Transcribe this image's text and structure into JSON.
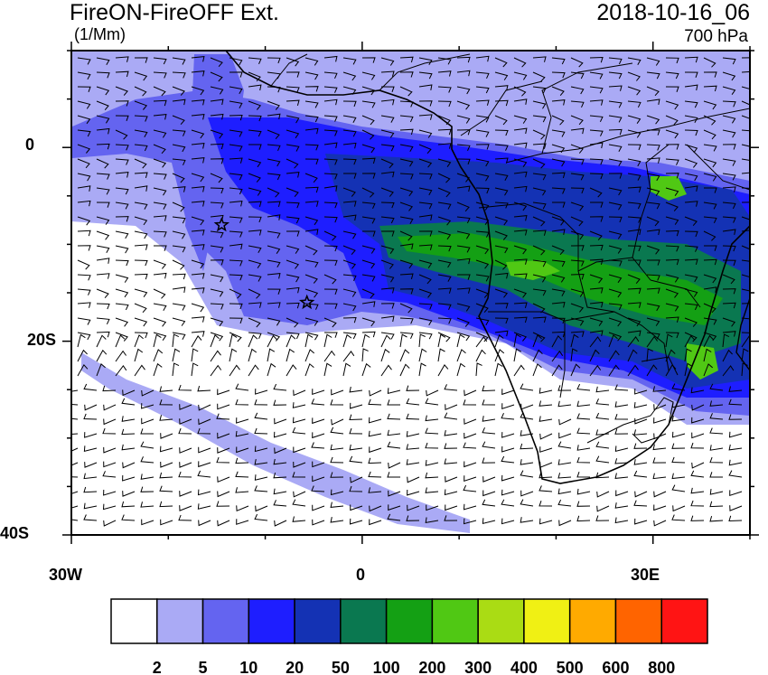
{
  "header": {
    "title": "FireON-FireOFF Ext.",
    "units": "(1/Mm)",
    "datetime": "2018-10-16_06",
    "level": "700 hPa"
  },
  "axes": {
    "y_ticks": [
      "0",
      "20S",
      "40S"
    ],
    "x_ticks": [
      "30W",
      "0",
      "30E"
    ]
  },
  "colorbar": {
    "colors": [
      "#ffffff",
      "#aaaaf5",
      "#6464f0",
      "#1e1eff",
      "#1432b4",
      "#0a7850",
      "#14a014",
      "#50c814",
      "#aadc14",
      "#f0f014",
      "#ffaa00",
      "#ff6400",
      "#ff1414"
    ],
    "labels": [
      "2",
      "5",
      "10",
      "20",
      "50",
      "100",
      "200",
      "300",
      "400",
      "500",
      "600",
      "800"
    ]
  },
  "markers": [
    {
      "name": "star-marker",
      "lon": -14.5,
      "lat": -8.0
    },
    {
      "name": "star-marker",
      "lon": -5.7,
      "lat": -16.0
    }
  ],
  "extent": {
    "lon": [
      -30,
      40
    ],
    "lat": [
      -40,
      10
    ]
  },
  "colors": {
    "land": "#000000",
    "wind_barb": "#000000"
  }
}
